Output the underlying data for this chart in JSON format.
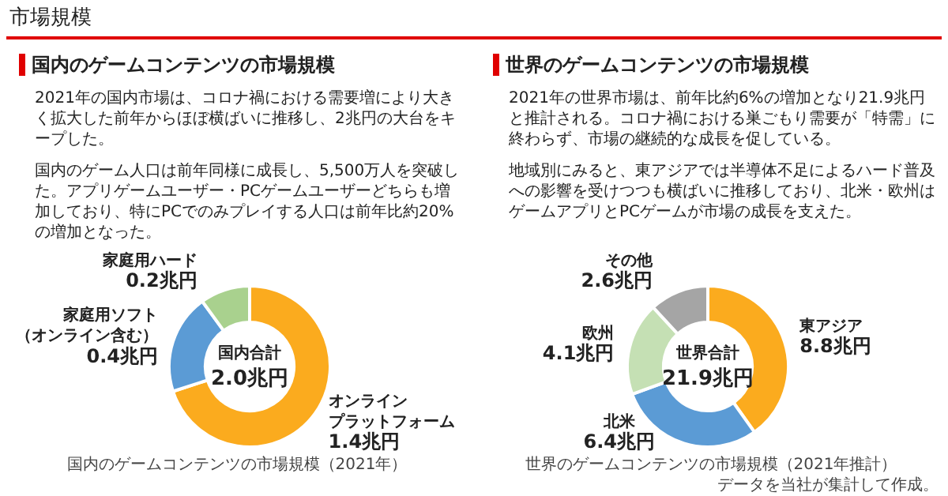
{
  "chart_data": [
    {
      "type": "donut",
      "title": "国内のゲームコンテンツの市場規模",
      "subtitle": "2021年の国内市場は、コロナ禍における需要増により大きく拡大した前年からほぼ横ばいに推移し、2兆円の大台をキープした。",
      "categories": [
        "オンラインプラットフォーム",
        "家庭用ソフト（オンライン含む）",
        "家庭用ハード"
      ],
      "values": [
        1.4,
        0.4,
        0.2
      ],
      "value_labels": [
        "1.4兆円",
        "0.4兆円",
        "0.2兆円"
      ],
      "colors": [
        "#fbab1e",
        "#5b9bd5",
        "#a9d18e"
      ],
      "annotations": [
        "国内のゲーム人口は前年同様に成長し、5,500万人を突破した。アプリゲームユーザー・PCゲームユーザーどちらも増加しており、特にPCでのみプレイする人口は前年比約20%の増加となった。",
        "国内合計",
        "2.0兆円",
        "国内のゲームコンテンツの市場規模（2021年）",
        "市場規模"
      ]
    },
    {
      "type": "donut",
      "title": "世界のゲームコンテンツの市場規模",
      "subtitle": "2021年の世界市場は、前年比約6%の増加となり21.9兆円と推計される。コロナ禍における巣ごもり需要が「特需」に終わらず、市場の継続的な成長を促している。",
      "categories": [
        "東アジア",
        "北米",
        "欧州",
        "その他"
      ],
      "values": [
        8.8,
        6.4,
        4.1,
        2.6
      ],
      "value_labels": [
        "8.8兆円",
        "6.4兆円",
        "4.1兆円",
        "2.6兆円"
      ],
      "colors": [
        "#fbab1e",
        "#5b9bd5",
        "#c5e0b4",
        "#a5a5a5"
      ],
      "annotations": [
        "地域別にみると、東アジアでは半導体不足によるハード普及への影響を受けつつも横ばいに推移しており、北米・欧州はゲームアプリとPCゲームが市場の成長を支えた。",
        "世界合計",
        "21.9兆円",
        "世界のゲームコンテンツの市場規模（2021年推計）",
        "データを当社が集計して作成。"
      ]
    }
  ]
}
